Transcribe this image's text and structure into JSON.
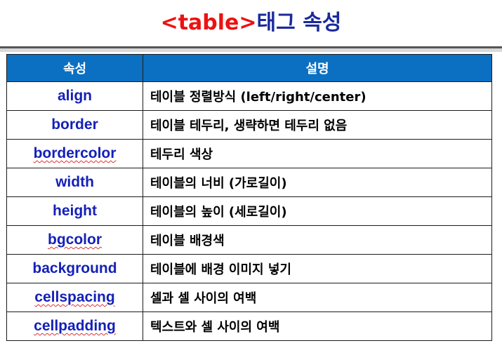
{
  "title": {
    "tag": "<table>",
    "rest": "태그 속성"
  },
  "table": {
    "headers": [
      "속성",
      "설명"
    ],
    "rows": [
      {
        "attribute": "align",
        "description": "테이블 정렬방식 (left/right/center)"
      },
      {
        "attribute": "border",
        "description": "테이블 테두리, 생략하면 테두리 없음"
      },
      {
        "attribute": "bordercolor",
        "description": "테두리 색상"
      },
      {
        "attribute": "width",
        "description": "테이블의 너비 (가로길이)"
      },
      {
        "attribute": "height",
        "description": "테이블의 높이 (세로길이)"
      },
      {
        "attribute": "bgcolor",
        "description": "테이블 배경색"
      },
      {
        "attribute": "background",
        "description": "테이블에 배경 이미지 넣기"
      },
      {
        "attribute": "cellspacing",
        "description": "셀과 셀 사이의 여백"
      },
      {
        "attribute": "cellpadding",
        "description": "텍스트와 셀 사이의 여백"
      }
    ]
  },
  "colors": {
    "title_tag": "#ee1111",
    "title_text": "#1a2a9c",
    "header_bg": "#0b70c2",
    "attribute_text": "#1420b8"
  }
}
